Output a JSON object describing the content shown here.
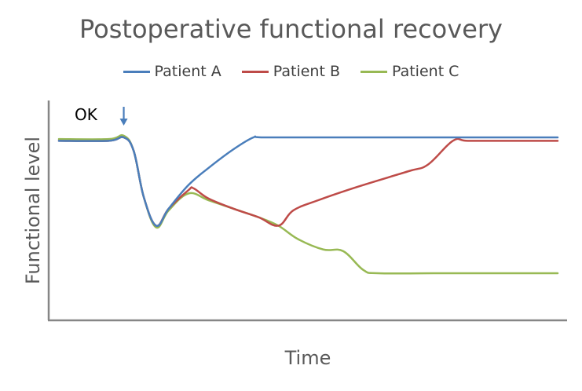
{
  "chart_data": {
    "type": "line",
    "title": "Postoperative functional recovery",
    "xlabel": "Time",
    "ylabel": "Functional level",
    "xlim": [
      0,
      100
    ],
    "ylim": [
      0,
      100
    ],
    "legend_position": "top-center",
    "grid": false,
    "annotation": {
      "label": "OK",
      "x": 13,
      "arrow_color": "#4a7ebb"
    },
    "series": [
      {
        "name": "Patient A",
        "color": "#4a7ebb",
        "points": [
          [
            0,
            98
          ],
          [
            10,
            98
          ],
          [
            13,
            100
          ],
          [
            15,
            92
          ],
          [
            17,
            65
          ],
          [
            19.5,
            48
          ],
          [
            22,
            58
          ],
          [
            26,
            72
          ],
          [
            30,
            82
          ],
          [
            35,
            93
          ],
          [
            39,
            100
          ],
          [
            41,
            100
          ],
          [
            55,
            100
          ],
          [
            70,
            100
          ],
          [
            85,
            100
          ],
          [
            100,
            100
          ]
        ]
      },
      {
        "name": "Patient B",
        "color": "#be4b48",
        "points": [
          [
            0,
            98
          ],
          [
            10,
            98
          ],
          [
            13,
            100
          ],
          [
            15,
            92
          ],
          [
            17,
            65
          ],
          [
            19.5,
            48
          ],
          [
            22,
            58
          ],
          [
            26,
            69
          ],
          [
            27,
            70
          ],
          [
            30,
            64
          ],
          [
            35,
            58
          ],
          [
            40,
            53
          ],
          [
            44,
            48
          ],
          [
            47,
            57
          ],
          [
            52,
            63
          ],
          [
            60,
            71
          ],
          [
            70,
            80
          ],
          [
            74,
            84
          ],
          [
            79,
            98
          ],
          [
            82,
            98
          ],
          [
            90,
            98
          ],
          [
            100,
            98
          ]
        ]
      },
      {
        "name": "Patient C",
        "color": "#98b954",
        "points": [
          [
            0,
            99
          ],
          [
            10,
            99
          ],
          [
            13,
            101
          ],
          [
            15,
            92
          ],
          [
            17,
            65
          ],
          [
            19.5,
            47
          ],
          [
            22,
            57
          ],
          [
            26,
            67
          ],
          [
            30,
            63
          ],
          [
            35,
            58
          ],
          [
            40,
            53
          ],
          [
            44,
            48
          ],
          [
            48,
            40
          ],
          [
            53,
            34
          ],
          [
            57,
            33
          ],
          [
            61,
            22
          ],
          [
            64,
            20
          ],
          [
            75,
            20
          ],
          [
            90,
            20
          ],
          [
            100,
            20
          ]
        ]
      }
    ]
  }
}
